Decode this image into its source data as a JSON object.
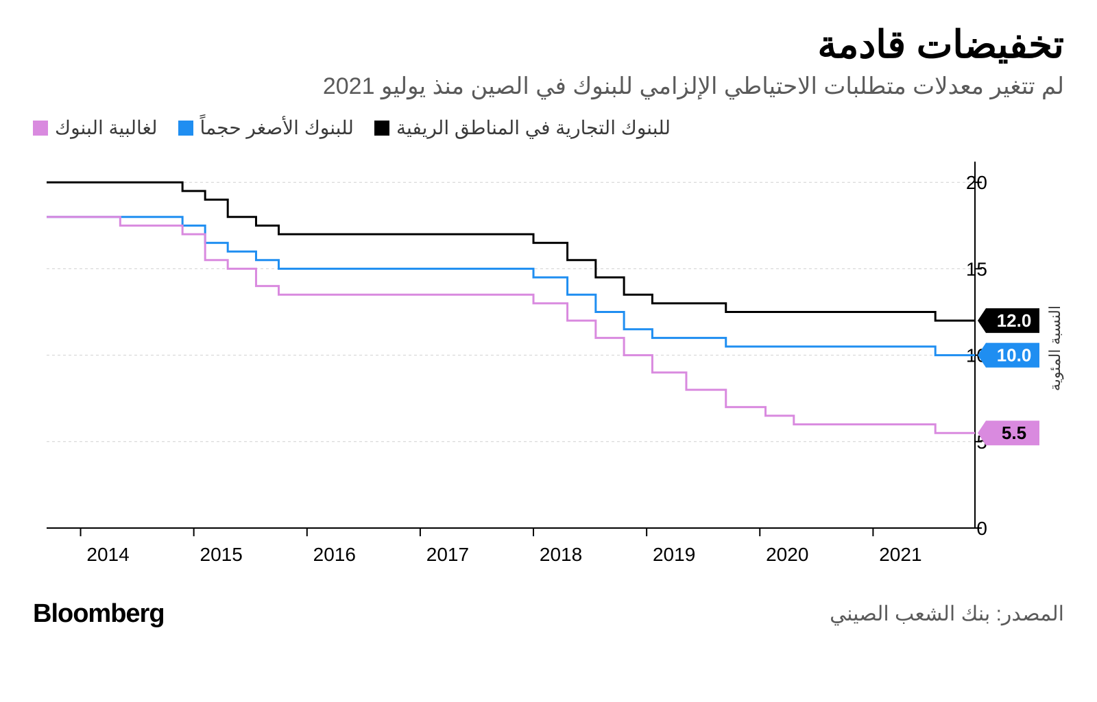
{
  "title": "تخفيضات قادمة",
  "subtitle": "لم تتغير معدلات متطلبات الاحتياطي الإلزامي للبنوك في الصين منذ يوليو 2021",
  "legend": [
    {
      "label": "لغالبية البنوك",
      "color": "#d98adf"
    },
    {
      "label": "للبنوك الأصغر حجماً",
      "color": "#1f8ef1"
    },
    {
      "label": "للبنوك التجارية في المناطق الريفية",
      "color": "#000000"
    }
  ],
  "chart": {
    "type": "step-line",
    "background_color": "#ffffff",
    "grid_color": "#d0d0d0",
    "axis_color": "#000000",
    "axis_width": 2,
    "line_width": 3,
    "xlim": [
      2013.7,
      2021.9
    ],
    "ylim": [
      0,
      21
    ],
    "yticks": [
      0,
      5,
      10,
      15,
      20
    ],
    "xticks": [
      2014,
      2015,
      2016,
      2017,
      2018,
      2019,
      2020,
      2021
    ],
    "ylabel": "النسبة المئوية",
    "tick_fontsize": 28,
    "label_fontsize": 22,
    "end_labels": [
      {
        "value": "12.0",
        "y": 12.0,
        "bg": "#000000",
        "fg": "#ffffff"
      },
      {
        "value": "10.0",
        "y": 10.0,
        "bg": "#1f8ef1",
        "fg": "#ffffff"
      },
      {
        "value": "5.5",
        "y": 5.5,
        "bg": "#d98adf",
        "fg": "#000000"
      }
    ],
    "series": [
      {
        "name": "rural",
        "color": "#000000",
        "points": [
          [
            2013.7,
            20.0
          ],
          [
            2014.9,
            20.0
          ],
          [
            2014.9,
            19.5
          ],
          [
            2015.1,
            19.5
          ],
          [
            2015.1,
            19.0
          ],
          [
            2015.3,
            19.0
          ],
          [
            2015.3,
            18.0
          ],
          [
            2015.55,
            18.0
          ],
          [
            2015.55,
            17.5
          ],
          [
            2015.75,
            17.5
          ],
          [
            2015.75,
            17.0
          ],
          [
            2018.0,
            17.0
          ],
          [
            2018.0,
            16.5
          ],
          [
            2018.3,
            16.5
          ],
          [
            2018.3,
            15.5
          ],
          [
            2018.55,
            15.5
          ],
          [
            2018.55,
            14.5
          ],
          [
            2018.8,
            14.5
          ],
          [
            2018.8,
            13.5
          ],
          [
            2019.05,
            13.5
          ],
          [
            2019.05,
            13.0
          ],
          [
            2019.7,
            13.0
          ],
          [
            2019.7,
            12.5
          ],
          [
            2020.05,
            12.5
          ],
          [
            2020.05,
            12.5
          ],
          [
            2021.55,
            12.5
          ],
          [
            2021.55,
            12.0
          ],
          [
            2021.9,
            12.0
          ]
        ]
      },
      {
        "name": "smaller",
        "color": "#1f8ef1",
        "points": [
          [
            2013.7,
            18.0
          ],
          [
            2014.9,
            18.0
          ],
          [
            2014.9,
            17.5
          ],
          [
            2015.1,
            17.5
          ],
          [
            2015.1,
            16.5
          ],
          [
            2015.3,
            16.5
          ],
          [
            2015.3,
            16.0
          ],
          [
            2015.55,
            16.0
          ],
          [
            2015.55,
            15.5
          ],
          [
            2015.75,
            15.5
          ],
          [
            2015.75,
            15.0
          ],
          [
            2018.0,
            15.0
          ],
          [
            2018.0,
            14.5
          ],
          [
            2018.3,
            14.5
          ],
          [
            2018.3,
            13.5
          ],
          [
            2018.55,
            13.5
          ],
          [
            2018.55,
            12.5
          ],
          [
            2018.8,
            12.5
          ],
          [
            2018.8,
            11.5
          ],
          [
            2019.05,
            11.5
          ],
          [
            2019.05,
            11.0
          ],
          [
            2019.7,
            11.0
          ],
          [
            2019.7,
            10.5
          ],
          [
            2021.55,
            10.5
          ],
          [
            2021.55,
            10.0
          ],
          [
            2021.9,
            10.0
          ]
        ]
      },
      {
        "name": "majority",
        "color": "#d98adf",
        "points": [
          [
            2013.7,
            18.0
          ],
          [
            2014.35,
            18.0
          ],
          [
            2014.35,
            17.5
          ],
          [
            2014.9,
            17.5
          ],
          [
            2014.9,
            17.0
          ],
          [
            2015.1,
            17.0
          ],
          [
            2015.1,
            15.5
          ],
          [
            2015.3,
            15.5
          ],
          [
            2015.3,
            15.0
          ],
          [
            2015.55,
            15.0
          ],
          [
            2015.55,
            14.0
          ],
          [
            2015.75,
            14.0
          ],
          [
            2015.75,
            13.5
          ],
          [
            2018.0,
            13.5
          ],
          [
            2018.0,
            13.0
          ],
          [
            2018.3,
            13.0
          ],
          [
            2018.3,
            12.0
          ],
          [
            2018.55,
            12.0
          ],
          [
            2018.55,
            11.0
          ],
          [
            2018.8,
            11.0
          ],
          [
            2018.8,
            10.0
          ],
          [
            2019.05,
            10.0
          ],
          [
            2019.05,
            9.0
          ],
          [
            2019.35,
            9.0
          ],
          [
            2019.35,
            8.0
          ],
          [
            2019.7,
            8.0
          ],
          [
            2019.7,
            7.0
          ],
          [
            2020.05,
            7.0
          ],
          [
            2020.05,
            6.5
          ],
          [
            2020.3,
            6.5
          ],
          [
            2020.3,
            6.0
          ],
          [
            2021.55,
            6.0
          ],
          [
            2021.55,
            5.5
          ],
          [
            2021.9,
            5.5
          ]
        ]
      }
    ]
  },
  "source": "المصدر: بنك الشعب الصيني",
  "brand": "Bloomberg"
}
